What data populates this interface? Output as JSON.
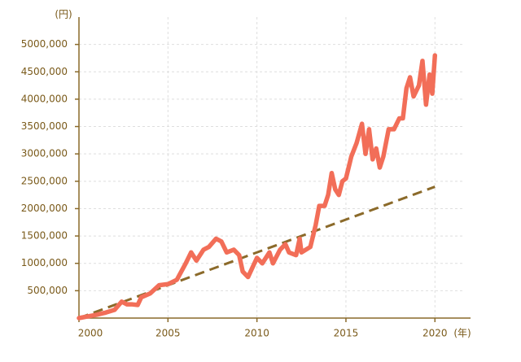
{
  "chart_data": {
    "type": "line",
    "y_label": "(円)",
    "x_label": "(年)",
    "xlim": [
      2000,
      2022
    ],
    "ylim": [
      0,
      5500000
    ],
    "xticks": [
      2000,
      2005,
      2010,
      2015,
      2020
    ],
    "yticks": [
      {
        "value": 500000,
        "label": "500,000"
      },
      {
        "value": 1000000,
        "label": "1000,000"
      },
      {
        "value": 1500000,
        "label": "1500,000"
      },
      {
        "value": 2000000,
        "label": "2000,000"
      },
      {
        "value": 2500000,
        "label": "2500,000"
      },
      {
        "value": 3000000,
        "label": "3000,000"
      },
      {
        "value": 3500000,
        "label": "3500,000"
      },
      {
        "value": 4000000,
        "label": "4000,000"
      },
      {
        "value": 4500000,
        "label": "4500,000"
      },
      {
        "value": 5000000,
        "label": "5000,000"
      }
    ],
    "grid": true,
    "series": [
      {
        "color": "#f26e58",
        "x": [
          2000.0,
          2000.5,
          2001.0,
          2001.5,
          2002.0,
          2002.4,
          2002.7,
          2003.0,
          2003.3,
          2003.5,
          2004.0,
          2004.5,
          2005.0,
          2005.5,
          2006.0,
          2006.3,
          2006.6,
          2007.0,
          2007.3,
          2007.7,
          2008.0,
          2008.3,
          2008.7,
          2009.0,
          2009.2,
          2009.5,
          2010.0,
          2010.3,
          2010.7,
          2010.9,
          2011.3,
          2011.6,
          2011.8,
          2012.2,
          2012.4,
          2012.5,
          2013.0,
          2013.3,
          2013.5,
          2013.8,
          2014.0,
          2014.2,
          2014.4,
          2014.6,
          2014.8,
          2015.0,
          2015.3,
          2015.6,
          2015.9,
          2016.1,
          2016.3,
          2016.5,
          2016.7,
          2016.9,
          2017.1,
          2017.4,
          2017.7,
          2018.0,
          2018.2,
          2018.4,
          2018.6,
          2018.8,
          2019.1,
          2019.3,
          2019.5,
          2019.7,
          2019.85,
          2020.0
        ],
        "values": [
          0,
          30000,
          60000,
          100000,
          150000,
          300000,
          250000,
          250000,
          240000,
          380000,
          450000,
          600000,
          620000,
          700000,
          1000000,
          1200000,
          1050000,
          1250000,
          1300000,
          1450000,
          1400000,
          1200000,
          1250000,
          1150000,
          850000,
          750000,
          1100000,
          1000000,
          1200000,
          1000000,
          1250000,
          1350000,
          1200000,
          1150000,
          1450000,
          1200000,
          1300000,
          1700000,
          2050000,
          2050000,
          2250000,
          2650000,
          2350000,
          2250000,
          2500000,
          2550000,
          2950000,
          3200000,
          3550000,
          3000000,
          3450000,
          2900000,
          3100000,
          2750000,
          2950000,
          3450000,
          3450000,
          3650000,
          3650000,
          4200000,
          4400000,
          4050000,
          4250000,
          4700000,
          3900000,
          4450000,
          4100000,
          4800000
        ]
      },
      {
        "color": "#8b6a2a",
        "dashed": true,
        "x": [
          2000,
          2020
        ],
        "values": [
          0,
          2400000
        ]
      }
    ]
  }
}
